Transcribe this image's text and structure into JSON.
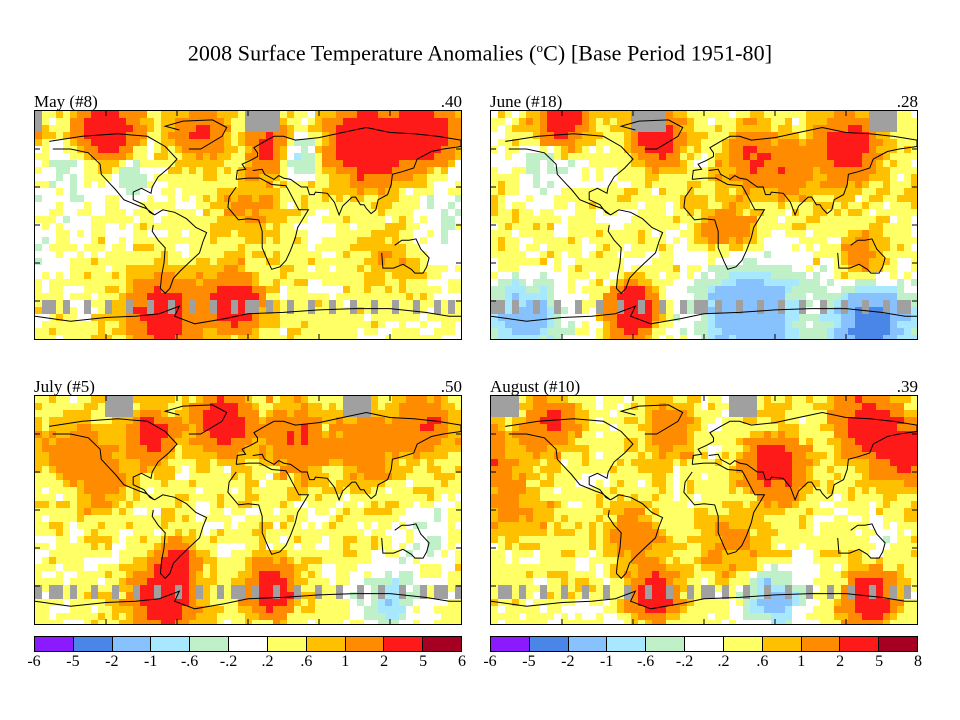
{
  "title_main": "2008 Surface Temperature Anomalies (",
  "title_sup": "o",
  "title_tail": "C) [Base Period 1951-80]",
  "palette": [
    "#8c1aff",
    "#4a86e8",
    "#87c2ff",
    "#a8e8ff",
    "#bff0c8",
    "#ffffff",
    "#ffff66",
    "#ffc000",
    "#ff8c00",
    "#ff1a1a",
    "#a50021"
  ],
  "gray": "#a0a0a0",
  "panels": [
    {
      "label": "May (#8)",
      "value": ".40"
    },
    {
      "label": "June (#18)",
      "value": ".28"
    },
    {
      "label": "July (#5)",
      "value": ".50"
    },
    {
      "label": "August (#10)",
      "value": ".39"
    }
  ],
  "scales": [
    {
      "ticks": [
        "-6",
        "-5",
        "-2",
        "-1",
        "-.6",
        "-.2",
        ".2",
        ".6",
        "1",
        "2",
        "5",
        "6"
      ]
    },
    {
      "ticks": [
        "-6",
        "-5",
        "-2",
        "-1",
        "-.6",
        "-.2",
        ".2",
        ".6",
        "1",
        "2",
        "5",
        "8"
      ]
    }
  ]
}
